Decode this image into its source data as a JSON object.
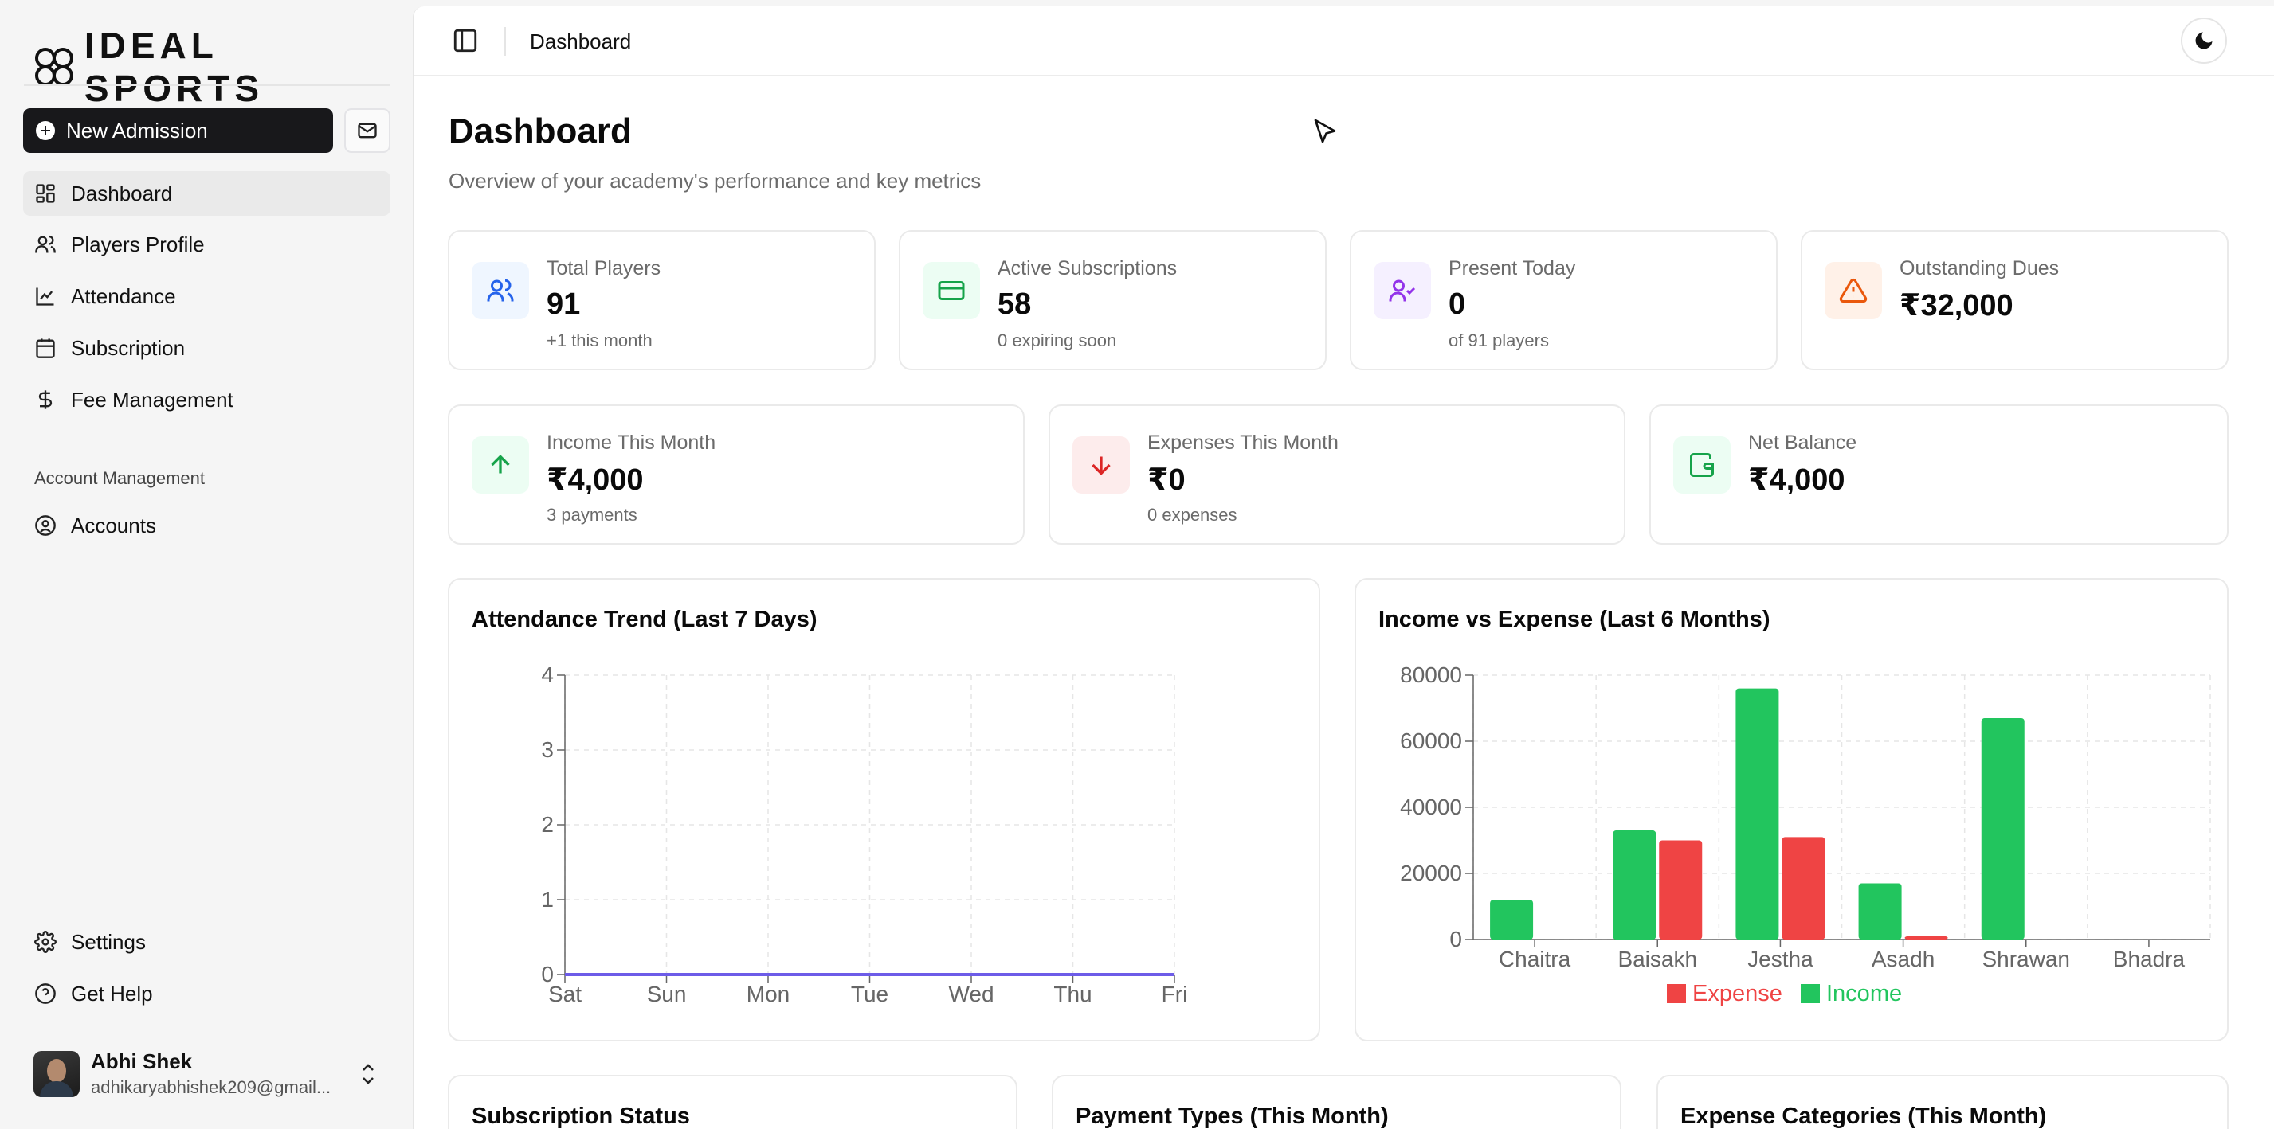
{
  "brand": {
    "name": "IDEAL SPORTS"
  },
  "sidebar": {
    "new_admission_label": "New Admission",
    "items": [
      {
        "label": "Dashboard",
        "icon": "layout-dashboard-icon"
      },
      {
        "label": "Players Profile",
        "icon": "users-icon"
      },
      {
        "label": "Attendance",
        "icon": "chart-line-icon"
      },
      {
        "label": "Subscription",
        "icon": "calendar-icon"
      },
      {
        "label": "Fee Management",
        "icon": "dollar-icon"
      }
    ],
    "section_label": "Account Management",
    "account_items": [
      {
        "label": "Accounts",
        "icon": "user-circle-icon"
      }
    ],
    "footer_items": [
      {
        "label": "Settings",
        "icon": "gear-icon"
      },
      {
        "label": "Get Help",
        "icon": "help-circle-icon"
      }
    ],
    "user": {
      "name": "Abhi Shek",
      "email": "adhikaryabhishek209@gmail..."
    }
  },
  "header": {
    "breadcrumb": "Dashboard"
  },
  "page": {
    "title": "Dashboard",
    "subtitle": "Overview of your academy's performance and key metrics"
  },
  "stats": [
    {
      "label": "Total Players",
      "value": "91",
      "sub": "+1 this month",
      "color": "#2563eb",
      "bg": "#eff6ff"
    },
    {
      "label": "Active Subscriptions",
      "value": "58",
      "sub": "0 expiring soon",
      "color": "#16a34a",
      "bg": "#ecfdf3"
    },
    {
      "label": "Present Today",
      "value": "0",
      "sub": "of 91 players",
      "color": "#9333ea",
      "bg": "#f5f0ff"
    },
    {
      "label": "Outstanding Dues",
      "value": "₹32,000",
      "sub": "",
      "color": "#ea580c",
      "bg": "#fff1e8"
    }
  ],
  "finance": [
    {
      "label": "Income This Month",
      "value": "₹4,000",
      "sub": "3 payments",
      "color": "#16a34a",
      "bg": "#ecfdf3"
    },
    {
      "label": "Expenses This Month",
      "value": "₹0",
      "sub": "0 expenses",
      "color": "#dc2626",
      "bg": "#fdecec"
    },
    {
      "label": "Net Balance",
      "value": "₹4,000",
      "sub": "",
      "color": "#16a34a",
      "bg": "#ecfdf3"
    }
  ],
  "chart_data": [
    {
      "type": "line",
      "title": "Attendance Trend (Last 7 Days)",
      "categories": [
        "Sat",
        "Sun",
        "Mon",
        "Tue",
        "Wed",
        "Thu",
        "Fri"
      ],
      "series": [
        {
          "values": [
            0,
            0,
            0,
            0,
            0,
            0,
            0
          ],
          "color": "#6d5ce8"
        }
      ],
      "yticks": [
        "0",
        "1",
        "2",
        "3",
        "4"
      ],
      "ylim": [
        0,
        4
      ],
      "grid": true
    },
    {
      "type": "bar",
      "title": "Income vs Expense (Last 6 Months)",
      "categories": [
        "Chaitra",
        "Baisakh",
        "Jestha",
        "Asadh",
        "Shrawan",
        "Bhadra"
      ],
      "series": [
        {
          "name": "Income",
          "values": [
            12000,
            33000,
            76000,
            17000,
            67000,
            0
          ],
          "color": "#22c55e"
        },
        {
          "name": "Expense",
          "values": [
            0,
            30000,
            31000,
            1000,
            0,
            0
          ],
          "color": "#ef4444"
        }
      ],
      "legend": [
        {
          "name": "Expense",
          "color": "#ef4444"
        },
        {
          "name": "Income",
          "color": "#22c55e"
        }
      ],
      "yticks": [
        "0",
        "20000",
        "40000",
        "60000",
        "80000"
      ],
      "ylim": [
        0,
        80000
      ],
      "grid": true,
      "legend_position": "bottom"
    }
  ],
  "bottom_cards": [
    {
      "title": "Subscription Status"
    },
    {
      "title": "Payment Types (This Month)"
    },
    {
      "title": "Expense Categories (This Month)"
    }
  ]
}
